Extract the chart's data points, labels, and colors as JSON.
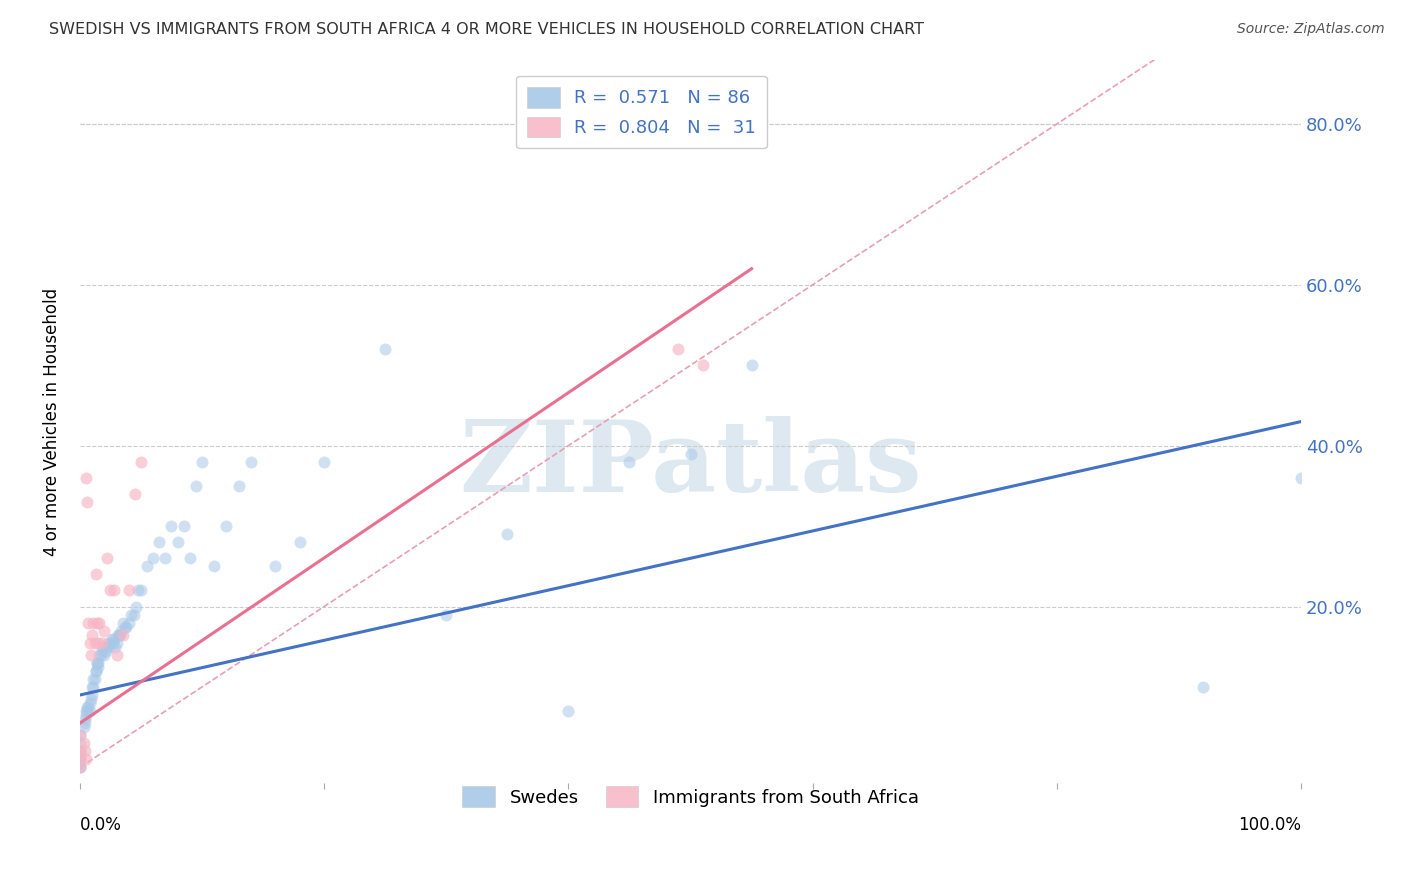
{
  "title": "SWEDISH VS IMMIGRANTS FROM SOUTH AFRICA 4 OR MORE VEHICLES IN HOUSEHOLD CORRELATION CHART",
  "source": "Source: ZipAtlas.com",
  "ylabel": "4 or more Vehicles in Household",
  "xlim": [
    0.0,
    1.0
  ],
  "ylim": [
    -0.02,
    0.88
  ],
  "legend_color1": "#a8c8e8",
  "legend_color2": "#f8b8c8",
  "swedes_color": "#a8c8e8",
  "immigrants_color": "#f8b4c4",
  "trendline_color_swedes": "#4472C4",
  "trendline_color_immigrants": "#e87090",
  "diagonal_color": "#e8a0b0",
  "diagonal_style": "--",
  "watermark_text": "ZIPatlas",
  "watermark_color": "#dde8f0",
  "swedes_scatter_x": [
    0.0,
    0.0,
    0.0,
    0.0,
    0.0,
    0.0,
    0.0,
    0.0,
    0.0,
    0.0,
    0.003,
    0.004,
    0.004,
    0.005,
    0.005,
    0.006,
    0.006,
    0.007,
    0.008,
    0.008,
    0.009,
    0.01,
    0.01,
    0.011,
    0.011,
    0.012,
    0.013,
    0.013,
    0.014,
    0.014,
    0.015,
    0.015,
    0.016,
    0.017,
    0.018,
    0.019,
    0.02,
    0.021,
    0.022,
    0.023,
    0.024,
    0.025,
    0.026,
    0.027,
    0.028,
    0.029,
    0.03,
    0.031,
    0.032,
    0.033,
    0.034,
    0.035,
    0.037,
    0.038,
    0.04,
    0.042,
    0.044,
    0.046,
    0.048,
    0.05,
    0.055,
    0.06,
    0.065,
    0.07,
    0.075,
    0.08,
    0.085,
    0.09,
    0.095,
    0.1,
    0.11,
    0.12,
    0.13,
    0.14,
    0.16,
    0.18,
    0.2,
    0.25,
    0.3,
    0.35,
    0.4,
    0.45,
    0.5,
    0.55,
    0.92,
    1.0
  ],
  "swedes_scatter_y": [
    0.0,
    0.0,
    0.005,
    0.01,
    0.01,
    0.01,
    0.02,
    0.02,
    0.03,
    0.04,
    0.05,
    0.055,
    0.06,
    0.065,
    0.07,
    0.07,
    0.075,
    0.075,
    0.07,
    0.08,
    0.085,
    0.09,
    0.1,
    0.1,
    0.11,
    0.11,
    0.12,
    0.12,
    0.13,
    0.13,
    0.125,
    0.13,
    0.14,
    0.14,
    0.145,
    0.15,
    0.14,
    0.145,
    0.15,
    0.155,
    0.15,
    0.155,
    0.16,
    0.155,
    0.16,
    0.15,
    0.155,
    0.165,
    0.165,
    0.165,
    0.17,
    0.18,
    0.175,
    0.175,
    0.18,
    0.19,
    0.19,
    0.2,
    0.22,
    0.22,
    0.25,
    0.26,
    0.28,
    0.26,
    0.3,
    0.28,
    0.3,
    0.26,
    0.35,
    0.38,
    0.25,
    0.3,
    0.35,
    0.38,
    0.25,
    0.28,
    0.38,
    0.52,
    0.19,
    0.29,
    0.07,
    0.38,
    0.39,
    0.5,
    0.1,
    0.36
  ],
  "immigrants_scatter_x": [
    0.0,
    0.0,
    0.0,
    0.0,
    0.003,
    0.004,
    0.005,
    0.005,
    0.006,
    0.007,
    0.008,
    0.009,
    0.01,
    0.011,
    0.012,
    0.013,
    0.014,
    0.015,
    0.016,
    0.018,
    0.02,
    0.022,
    0.025,
    0.028,
    0.03,
    0.035,
    0.04,
    0.045,
    0.05,
    0.49,
    0.51
  ],
  "immigrants_scatter_y": [
    0.0,
    0.01,
    0.02,
    0.04,
    0.03,
    0.02,
    0.01,
    0.36,
    0.33,
    0.18,
    0.155,
    0.14,
    0.165,
    0.18,
    0.155,
    0.24,
    0.18,
    0.155,
    0.18,
    0.155,
    0.17,
    0.26,
    0.22,
    0.22,
    0.14,
    0.165,
    0.22,
    0.34,
    0.38,
    0.52,
    0.5
  ],
  "swedes_trendline_x": [
    0.0,
    1.0
  ],
  "swedes_trendline_y": [
    0.09,
    0.43
  ],
  "immigrants_trendline_x": [
    0.0,
    0.55
  ],
  "immigrants_trendline_y": [
    0.055,
    0.62
  ]
}
